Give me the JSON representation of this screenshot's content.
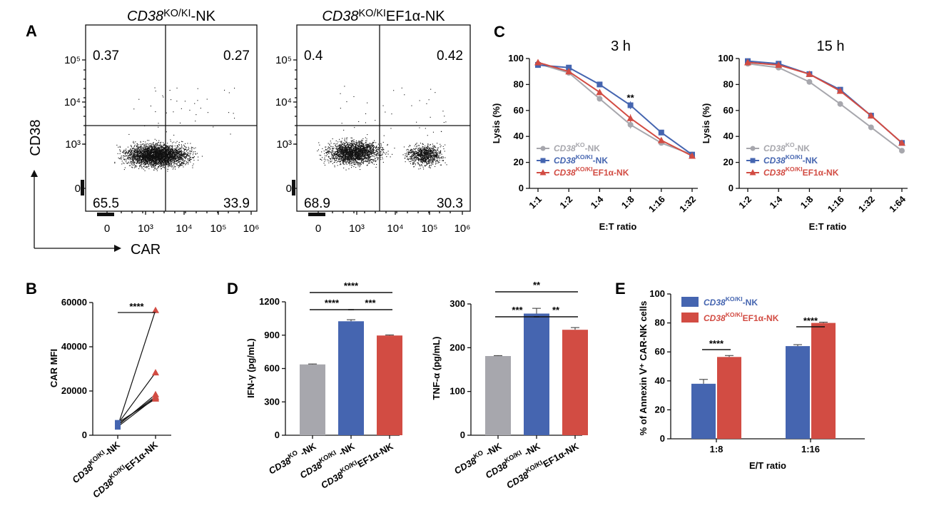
{
  "panels": {
    "A": "A",
    "B": "B",
    "C": "C",
    "D": "D",
    "E": "E"
  },
  "colors": {
    "ko": "#a7a7ad",
    "koki": "#4565b0",
    "ef1a": "#d24c43",
    "dot": "#111111"
  },
  "chart_data": [
    {
      "id": "A",
      "type": "scatter",
      "plots": [
        {
          "title_base": "CD38",
          "title_sup": "KO/KI",
          "title_suffix": "-NK",
          "quadrants": {
            "ul": "0.37",
            "ur": "0.27",
            "ll": "65.5",
            "lr": "33.9"
          }
        },
        {
          "title_base": "CD38",
          "title_sup": "KO/KI",
          "title_suffix": "EF1α-NK",
          "quadrants": {
            "ul": "0.4",
            "ur": "0.42",
            "ll": "68.9",
            "lr": "30.3"
          }
        }
      ],
      "xlabel": "CAR",
      "ylabel": "CD38",
      "x_ticks": [
        "0",
        "10³",
        "10⁴",
        "10⁵",
        "10⁶"
      ],
      "y_ticks": [
        "0",
        "10³",
        "10⁴",
        "10⁵"
      ]
    },
    {
      "id": "B",
      "type": "line",
      "ylabel": "CAR MFI",
      "ylim": [
        0,
        60000
      ],
      "y_ticks": [
        "0",
        "20000",
        "40000",
        "60000"
      ],
      "categories": [
        {
          "base": "CD38",
          "sup": "KO/KI",
          "suffix": "-NK"
        },
        {
          "base": "CD38",
          "sup": "KO/KI",
          "suffix": "EF1α-NK"
        }
      ],
      "pairs": [
        [
          3500,
          56500
        ],
        [
          4500,
          28000
        ],
        [
          3800,
          18000
        ],
        [
          3200,
          16500
        ],
        [
          4200,
          17000
        ],
        [
          5000,
          16000
        ]
      ],
      "significance": "****"
    },
    {
      "id": "C",
      "type": "line",
      "plots": [
        {
          "title": "3 h",
          "x": [
            "1:1",
            "1:2",
            "1:4",
            "1:8",
            "1:16",
            "1:32"
          ],
          "series": [
            {
              "values": [
                96,
                89,
                69,
                49,
                35,
                26
              ]
            },
            {
              "values": [
                95,
                93,
                80,
                64,
                43,
                26
              ]
            },
            {
              "values": [
                97,
                90,
                74,
                54,
                37,
                25
              ]
            }
          ],
          "errors": [
            2,
            2,
            2,
            3,
            2,
            1
          ],
          "annotations": [
            {
              "x": "1:8",
              "label": "**"
            }
          ]
        },
        {
          "title": "15 h",
          "x": [
            "1:2",
            "1:4",
            "1:8",
            "1:16",
            "1:32",
            "1:64"
          ],
          "series": [
            {
              "values": [
                96,
                93,
                82,
                65,
                47,
                29
              ]
            },
            {
              "values": [
                98,
                96,
                88,
                76,
                56,
                35
              ]
            },
            {
              "values": [
                97,
                95,
                88,
                75,
                56,
                35
              ]
            }
          ],
          "errors": [
            1,
            1,
            1,
            1,
            1,
            2
          ],
          "annotations": []
        }
      ],
      "xlabel": "E:T ratio",
      "ylabel": "Lysis (%)",
      "ylim": [
        0,
        100
      ],
      "y_ticks": [
        "0",
        "20",
        "40",
        "60",
        "80",
        "100"
      ],
      "legend": [
        {
          "base": "CD38",
          "sup": "KO",
          "suffix": "-NK"
        },
        {
          "base": "CD38",
          "sup": "KO/KI",
          "suffix": "-NK"
        },
        {
          "base": "CD38",
          "sup": "KO/KI",
          "suffix": "EF1α-NK"
        }
      ]
    },
    {
      "id": "D",
      "type": "bar",
      "categories": [
        {
          "base": "CD38",
          "sup": "KO",
          "suffix": " -NK"
        },
        {
          "base": "CD38",
          "sup": "KO/KI",
          "suffix": " -NK"
        },
        {
          "base": "CD38",
          "sup": "KO/KI",
          "suffix": "EF1α-NK"
        }
      ],
      "plots": [
        {
          "ylabel": "IFN-γ (pg/mL)",
          "ylim": [
            0,
            1200
          ],
          "y_ticks": [
            "0",
            "300",
            "600",
            "900",
            "1200"
          ],
          "values": [
            637,
            1025,
            897
          ],
          "errors": [
            4,
            14,
            5
          ],
          "brackets": [
            {
              "from": 0,
              "to": 2,
              "label": "****",
              "level": 2
            },
            {
              "from": 0,
              "to": 1,
              "label": "****",
              "level": 1
            },
            {
              "from": 1,
              "to": 2,
              "label": "***",
              "level": 1
            }
          ]
        },
        {
          "ylabel": "TNF-α (pg/mL)",
          "ylim": [
            0,
            300
          ],
          "y_ticks": [
            "0",
            "100",
            "200",
            "300"
          ],
          "values": [
            181,
            278,
            241
          ],
          "errors": [
            1,
            12,
            5
          ],
          "brackets": [
            {
              "from": 0,
              "to": 2,
              "label": "**",
              "level": 2
            },
            {
              "from": 0,
              "to": 1,
              "label": "***",
              "level": 1
            },
            {
              "from": 1,
              "to": 2,
              "label": "**",
              "level": 1
            }
          ]
        }
      ]
    },
    {
      "id": "E",
      "type": "bar",
      "categories": [
        "1:8",
        "1:16"
      ],
      "xlabel": "E/T ratio",
      "ylabel": "% of Annexin Ⅴ⁺ CAR-NK cells",
      "ylim": [
        0,
        100
      ],
      "y_ticks": [
        "0",
        "20",
        "40",
        "60",
        "80",
        "100"
      ],
      "series": [
        {
          "values": [
            38,
            64
          ],
          "errors": [
            3,
            1
          ]
        },
        {
          "values": [
            56.5,
            80
          ],
          "errors": [
            1,
            0.5
          ]
        }
      ],
      "legend": [
        {
          "base": "CD38",
          "sup": "KO/KI",
          "suffix": "-NK"
        },
        {
          "base": "CD38",
          "sup": "KO/KI",
          "suffix": "EF1α-NK"
        }
      ],
      "significance": [
        "****",
        "****"
      ]
    }
  ]
}
